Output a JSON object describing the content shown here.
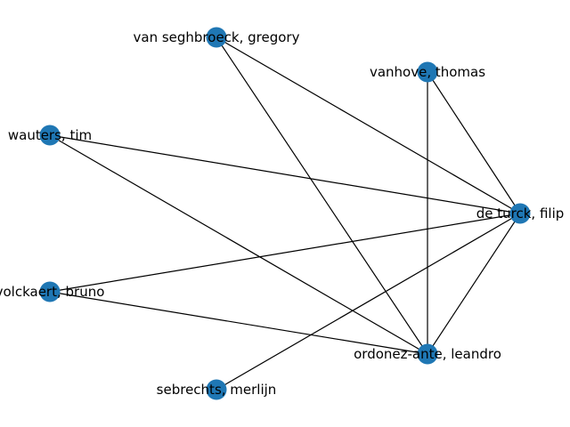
{
  "graph": {
    "node_color": "#1f77b4",
    "edge_color": "#000000",
    "nodes": [
      {
        "id": "van_seghbroeck",
        "label": "van seghbroeck, gregory"
      },
      {
        "id": "vanhove",
        "label": "vanhove, thomas"
      },
      {
        "id": "wauters",
        "label": "wauters, tim"
      },
      {
        "id": "de_turck",
        "label": "de turck, filip"
      },
      {
        "id": "volckaert",
        "label": "volckaert, bruno"
      },
      {
        "id": "ordonez_ante",
        "label": "ordonez-ante, leandro"
      },
      {
        "id": "sebrechts",
        "label": "sebrechts, merlijn"
      }
    ],
    "edges": [
      {
        "source": "van_seghbroeck",
        "target": "de_turck"
      },
      {
        "source": "van_seghbroeck",
        "target": "ordonez_ante"
      },
      {
        "source": "vanhove",
        "target": "de_turck"
      },
      {
        "source": "vanhove",
        "target": "ordonez_ante"
      },
      {
        "source": "wauters",
        "target": "de_turck"
      },
      {
        "source": "wauters",
        "target": "ordonez_ante"
      },
      {
        "source": "volckaert",
        "target": "de_turck"
      },
      {
        "source": "volckaert",
        "target": "ordonez_ante"
      },
      {
        "source": "de_turck",
        "target": "ordonez_ante"
      },
      {
        "source": "de_turck",
        "target": "sebrechts"
      }
    ]
  }
}
